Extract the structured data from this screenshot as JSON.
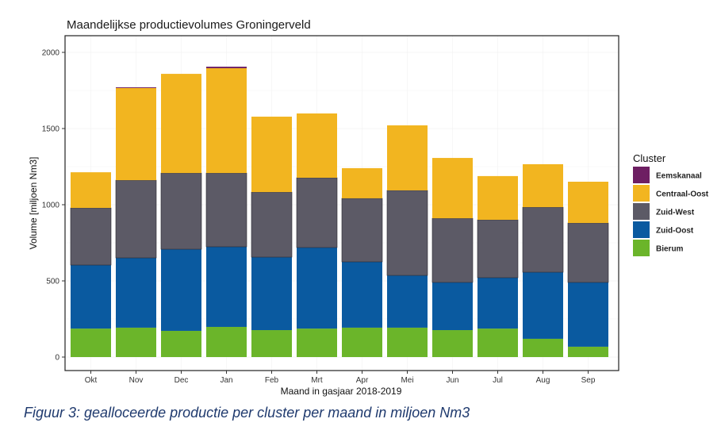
{
  "caption": "Figuur 3: gealloceerde productie per cluster per maand in miljoen Nm3",
  "chart_data": {
    "type": "bar",
    "stacked": true,
    "title": "Maandelijkse productievolumes Groningerveld",
    "xlabel": "Maand in gasjaar 2018-2019",
    "ylabel": "Volume [miljoen Nm3]",
    "ylim": [
      0,
      2080
    ],
    "yticks": [
      0,
      500,
      1000,
      1500,
      2000
    ],
    "grid": true,
    "legend": {
      "title": "Cluster",
      "position": "right"
    },
    "categories": [
      "Okt",
      "Nov",
      "Dec",
      "Jan",
      "Feb",
      "Mrt",
      "Apr",
      "Mei",
      "Jun",
      "Jul",
      "Aug",
      "Sep"
    ],
    "series": [
      {
        "name": "Bierum",
        "color": "#6bb52a",
        "values": [
          187,
          193,
          172,
          198,
          177,
          187,
          193,
          193,
          177,
          187,
          120,
          68
        ]
      },
      {
        "name": "Zuid-Oost",
        "color": "#0a5aa0",
        "values": [
          417,
          458,
          536,
          526,
          479,
          532,
          432,
          343,
          313,
          334,
          437,
          422
        ]
      },
      {
        "name": "Zuid-West",
        "color": "#5c5a66",
        "values": [
          375,
          510,
          500,
          484,
          427,
          458,
          417,
          558,
          421,
          380,
          427,
          390
        ]
      },
      {
        "name": "Centraal-Oost",
        "color": "#f2b520",
        "values": [
          234,
          605,
          651,
          688,
          495,
          422,
          198,
          427,
          396,
          287,
          282,
          271
        ]
      },
      {
        "name": "Eemskanaal",
        "color": "#6e1f63",
        "values": [
          0,
          5,
          0,
          10,
          0,
          0,
          0,
          0,
          0,
          0,
          0,
          0
        ]
      }
    ],
    "legend_order": [
      "Eemskanaal",
      "Centraal-Oost",
      "Zuid-West",
      "Zuid-Oost",
      "Bierum"
    ]
  }
}
